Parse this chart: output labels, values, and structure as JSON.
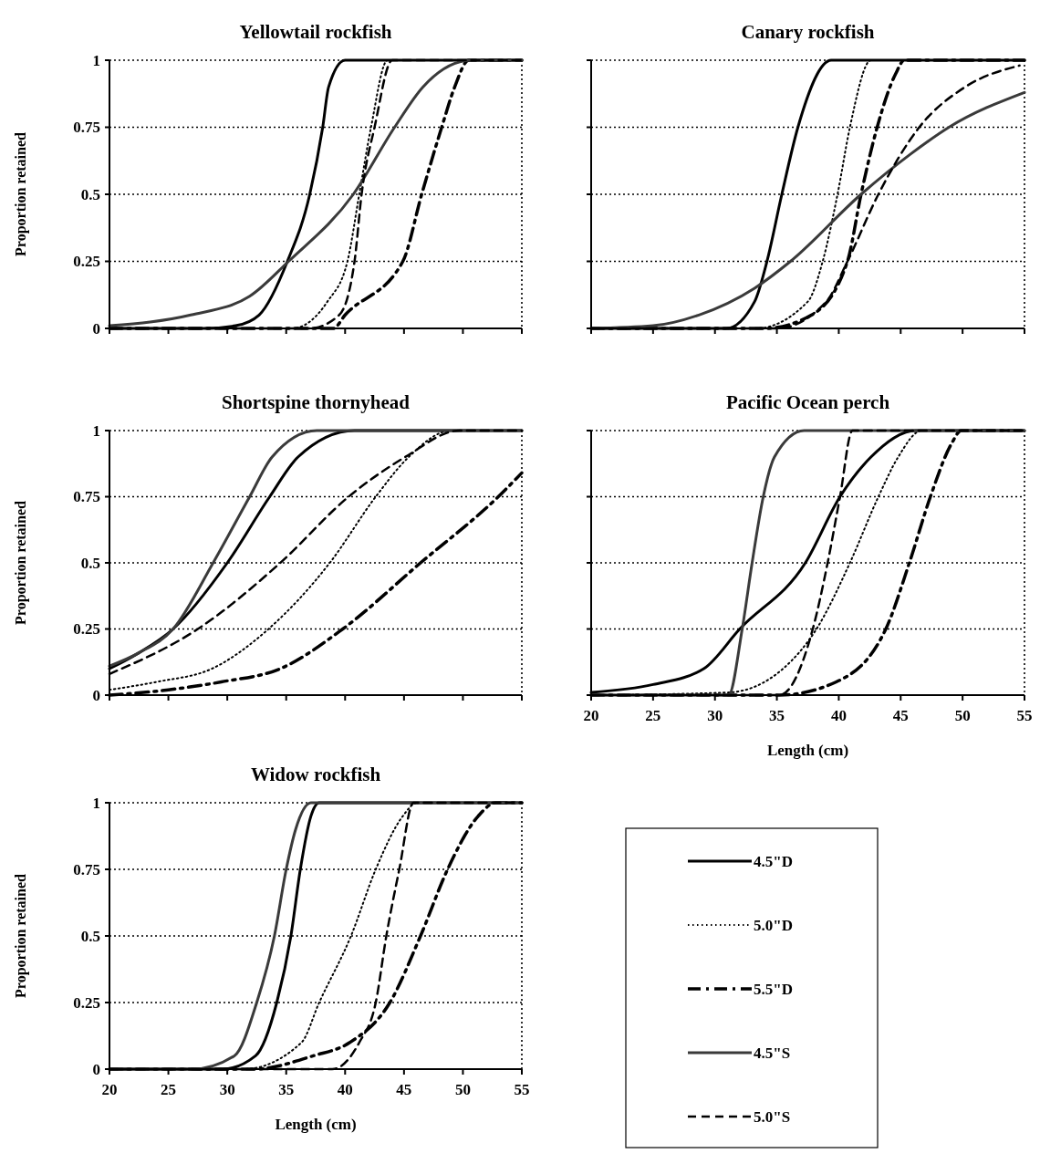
{
  "chart_data": [
    {
      "type": "line",
      "title": "Yellowtail rockfish",
      "ylabel": "Proportion retained",
      "xlim": [
        20,
        55
      ],
      "ylim": [
        0,
        1
      ],
      "xticks": [
        20,
        25,
        30,
        35,
        40,
        45,
        50,
        55
      ],
      "yticks": [
        0,
        0.25,
        0.5,
        0.75,
        1
      ],
      "grid": "y",
      "tick_labels": "y",
      "series": [
        {
          "color": "#000000",
          "line_style": "solid",
          "x": [
            20,
            28,
            30.7,
            32.7,
            35.1,
            37.0,
            38.1,
            38.6,
            40,
            55
          ],
          "values": [
            0,
            0,
            0.01,
            0.05,
            0.25,
            0.5,
            0.75,
            0.9,
            1,
            1
          ]
        },
        {
          "color": "#000000",
          "line_style": "dotted",
          "x": [
            20,
            35.5,
            38.5,
            40.2,
            41.2,
            42.2,
            43.6,
            55
          ],
          "values": [
            0,
            0,
            0.1,
            0.25,
            0.5,
            0.75,
            1,
            1
          ]
        },
        {
          "color": "#000000",
          "line_style": "dashdot",
          "x": [
            20,
            39,
            40,
            44.9,
            46.5,
            48.2,
            49.3,
            50.5,
            55
          ],
          "values": [
            0,
            0,
            0.05,
            0.25,
            0.5,
            0.75,
            0.9,
            1,
            1
          ]
        },
        {
          "color": "#3a3a3a",
          "line_style": "solid",
          "x": [
            20,
            26.9,
            31.9,
            35.2,
            40.7,
            44.2,
            46.6,
            50.7,
            55
          ],
          "values": [
            0.01,
            0.05,
            0.12,
            0.25,
            0.5,
            0.75,
            0.9,
            1,
            1
          ]
        },
        {
          "color": "#000000",
          "line_style": "dashed",
          "x": [
            20,
            37,
            39.5,
            40.8,
            41.4,
            42.5,
            44,
            55
          ],
          "values": [
            0,
            0,
            0.05,
            0.25,
            0.5,
            0.75,
            1,
            1
          ]
        }
      ]
    },
    {
      "type": "line",
      "title": "Canary rockfish",
      "xlim": [
        20,
        55
      ],
      "ylim": [
        0,
        1
      ],
      "xticks": [
        20,
        25,
        30,
        35,
        40,
        45,
        50,
        55
      ],
      "yticks": [
        0,
        0.25,
        0.5,
        0.75,
        1
      ],
      "grid": "y",
      "tick_labels": false,
      "series": [
        {
          "color": "#000000",
          "line_style": "solid",
          "x": [
            20,
            30.9,
            33.2,
            34.2,
            35.4,
            36.7,
            39.4,
            55
          ],
          "values": [
            0,
            0,
            0.1,
            0.25,
            0.5,
            0.75,
            1,
            1
          ]
        },
        {
          "color": "#000000",
          "line_style": "dotted",
          "x": [
            20,
            33.3,
            37.5,
            38.7,
            39.9,
            40.9,
            42.6,
            55
          ],
          "values": [
            0,
            0,
            0.1,
            0.25,
            0.5,
            0.75,
            1,
            1
          ]
        },
        {
          "color": "#000000",
          "line_style": "dashdot",
          "x": [
            20,
            34,
            37.8,
            40.7,
            41.8,
            43.1,
            44.6,
            45.3,
            55
          ],
          "values": [
            0,
            0,
            0.05,
            0.25,
            0.5,
            0.75,
            0.95,
            1,
            1
          ]
        },
        {
          "color": "#3a3a3a",
          "line_style": "solid",
          "x": [
            20,
            25,
            28.7,
            33.2,
            36.1,
            41.8,
            45.8,
            48.9,
            55
          ],
          "values": [
            0,
            0.01,
            0.05,
            0.15,
            0.25,
            0.5,
            0.65,
            0.75,
            0.88
          ]
        },
        {
          "color": "#000000",
          "line_style": "dashed",
          "x": [
            20,
            35,
            39,
            40.7,
            43.2,
            46.5,
            50.2,
            54.6
          ],
          "values": [
            0,
            0,
            0.1,
            0.25,
            0.5,
            0.75,
            0.9,
            0.98
          ]
        }
      ]
    },
    {
      "type": "line",
      "title": "Shortspine thornyhead",
      "ylabel": "Proportion retained",
      "xlim": [
        20,
        55
      ],
      "ylim": [
        0,
        1
      ],
      "xticks": [
        20,
        25,
        30,
        35,
        40,
        45,
        50,
        55
      ],
      "yticks": [
        0,
        0.25,
        0.5,
        0.75,
        1
      ],
      "grid": "y",
      "tick_labels": "y",
      "series": [
        {
          "color": "#000000",
          "line_style": "solid",
          "x": [
            20,
            22.5,
            25.4,
            30,
            33.6,
            36,
            40.8,
            55
          ],
          "values": [
            0.1,
            0.16,
            0.25,
            0.5,
            0.75,
            0.9,
            1,
            1
          ]
        },
        {
          "color": "#000000",
          "line_style": "dotted",
          "x": [
            20,
            24,
            28.7,
            33.5,
            38.7,
            42.6,
            45.4,
            49,
            55
          ],
          "values": [
            0.02,
            0.05,
            0.1,
            0.25,
            0.5,
            0.75,
            0.9,
            1,
            1
          ]
        },
        {
          "color": "#000000",
          "line_style": "dashdot",
          "x": [
            20,
            25,
            29.5,
            34.5,
            39.8,
            46.4,
            53,
            55
          ],
          "values": [
            0,
            0.02,
            0.05,
            0.1,
            0.25,
            0.5,
            0.75,
            0.84
          ]
        },
        {
          "color": "#3a3a3a",
          "line_style": "solid",
          "x": [
            20,
            22.5,
            25.4,
            28.8,
            31.9,
            33.8,
            37.6,
            55
          ],
          "values": [
            0.11,
            0.16,
            0.25,
            0.5,
            0.75,
            0.9,
            1,
            1
          ]
        },
        {
          "color": "#000000",
          "line_style": "dashed",
          "x": [
            20,
            27.5,
            34.5,
            40.3,
            45.1,
            49.7,
            55
          ],
          "values": [
            0.08,
            0.25,
            0.5,
            0.75,
            0.9,
            1,
            1
          ]
        }
      ]
    },
    {
      "type": "line",
      "title": "Pacific Ocean perch",
      "xlabel": "Length (cm)",
      "xlim": [
        20,
        55
      ],
      "ylim": [
        0,
        1
      ],
      "xticks": [
        20,
        25,
        30,
        35,
        40,
        45,
        50,
        55
      ],
      "yticks": [
        0,
        0.25,
        0.5,
        0.75,
        1
      ],
      "grid": "y",
      "tick_labels": "x",
      "series": [
        {
          "color": "#000000",
          "line_style": "solid",
          "x": [
            20,
            25,
            29.1,
            32,
            37.3,
            40.1,
            42.6,
            46.2,
            55
          ],
          "values": [
            0.01,
            0.04,
            0.1,
            0.25,
            0.5,
            0.75,
            0.9,
            1,
            1
          ]
        },
        {
          "color": "#000000",
          "line_style": "dotted",
          "x": [
            20,
            31.1,
            35.5,
            38.2,
            40.9,
            43.2,
            44.8,
            46.7,
            55
          ],
          "values": [
            0,
            0.01,
            0.1,
            0.25,
            0.5,
            0.75,
            0.9,
            1,
            1
          ]
        },
        {
          "color": "#000000",
          "line_style": "dashdot",
          "x": [
            20,
            35.2,
            39.8,
            43.8,
            45.7,
            47.4,
            49.1,
            49.9,
            55
          ],
          "values": [
            0,
            0,
            0.05,
            0.25,
            0.5,
            0.75,
            0.95,
            1,
            1
          ]
        },
        {
          "color": "#3a3a3a",
          "line_style": "solid",
          "x": [
            20,
            31.1,
            32.2,
            33,
            33.9,
            34.8,
            37.2,
            55
          ],
          "values": [
            0,
            0,
            0.25,
            0.5,
            0.75,
            0.9,
            1,
            1
          ]
        },
        {
          "color": "#000000",
          "line_style": "dashed",
          "x": [
            20,
            35.2,
            37.9,
            39.1,
            40.1,
            41.1,
            55
          ],
          "values": [
            0,
            0,
            0.25,
            0.5,
            0.75,
            1,
            1
          ]
        }
      ]
    },
    {
      "type": "line",
      "title": "Widow rockfish",
      "xlabel": "Length (cm)",
      "ylabel": "Proportion retained",
      "xlim": [
        20,
        55
      ],
      "ylim": [
        0,
        1
      ],
      "xticks": [
        20,
        25,
        30,
        35,
        40,
        45,
        50,
        55
      ],
      "yticks": [
        0,
        0.25,
        0.5,
        0.75,
        1
      ],
      "grid": "y",
      "legend": "right",
      "series": [
        {
          "name": "4.5\"D",
          "color": "#000000",
          "line_style": "solid",
          "x": [
            20,
            29.6,
            32.4,
            34.2,
            35.4,
            36.2,
            37.1,
            37.8,
            55
          ],
          "values": [
            0,
            0,
            0.05,
            0.25,
            0.5,
            0.75,
            0.95,
            1,
            1
          ]
        },
        {
          "name": "5.0\"D",
          "color": "#000000",
          "line_style": "dotted",
          "x": [
            20,
            31.4,
            36.3,
            37.8,
            40.5,
            42.6,
            44.9,
            46.1,
            55
          ],
          "values": [
            0,
            0,
            0.1,
            0.25,
            0.5,
            0.75,
            0.95,
            1,
            1
          ]
        },
        {
          "name": "5.5\"D",
          "color": "#000000",
          "line_style": "dashdot",
          "x": [
            20,
            32.2,
            37.3,
            40.4,
            43.8,
            46.4,
            48.7,
            51.3,
            52.8,
            55
          ],
          "values": [
            0,
            0,
            0.05,
            0.1,
            0.25,
            0.5,
            0.75,
            0.95,
            1,
            1
          ]
        },
        {
          "name": "4.5\"S",
          "color": "#3a3a3a",
          "line_style": "solid",
          "x": [
            20,
            27,
            30.6,
            32.5,
            34,
            35,
            35.8,
            37.1,
            55
          ],
          "values": [
            0,
            0,
            0.05,
            0.25,
            0.5,
            0.75,
            0.9,
            1,
            1
          ]
        },
        {
          "name": "5.0\"S",
          "color": "#000000",
          "line_style": "dashed",
          "x": [
            20,
            38.9,
            41.2,
            42.6,
            43.5,
            44.6,
            45.8,
            55
          ],
          "values": [
            0,
            0,
            0.1,
            0.25,
            0.5,
            0.75,
            1,
            1
          ]
        }
      ]
    }
  ]
}
